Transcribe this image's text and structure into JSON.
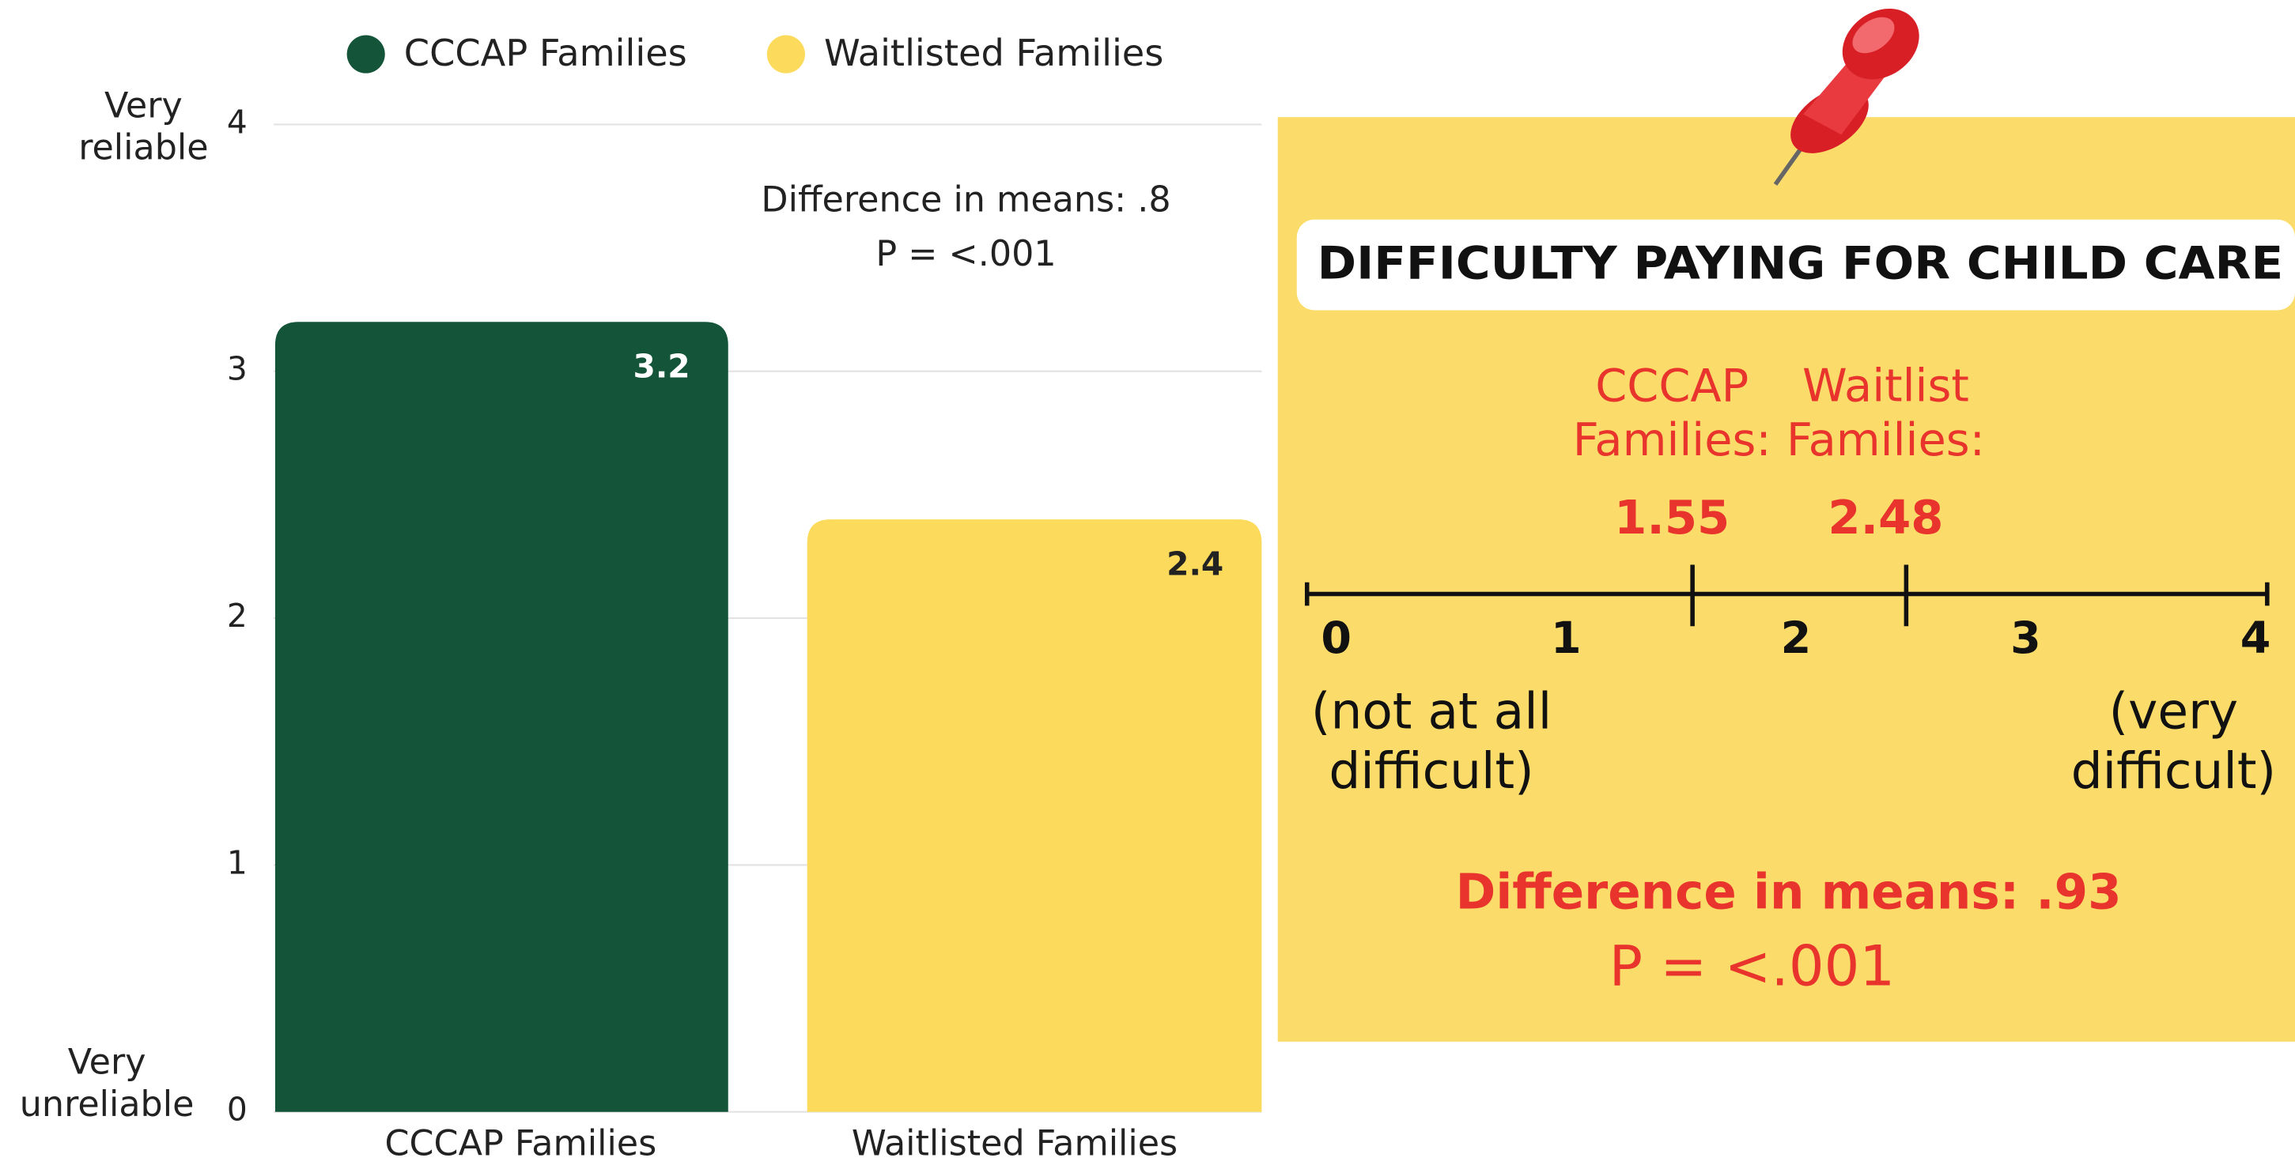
{
  "chart_data": [
    {
      "type": "bar",
      "categories": [
        "CCCAP Families",
        "Waitlisted Families"
      ],
      "series": [
        {
          "name": "CCCAP Families",
          "color": "#14553a",
          "values": [
            3.2,
            null
          ]
        },
        {
          "name": "Waitlisted Families",
          "color": "#fcdb5c",
          "values": [
            null,
            2.4
          ]
        }
      ],
      "ylim": [
        0,
        4
      ],
      "yticks": [
        0,
        1,
        2,
        3,
        4
      ],
      "grid": true,
      "ylabel_top": "Very\nreliable",
      "ylabel_bottom": "Very\nunreliable",
      "annotations": [
        "Difference in means: .8",
        "P = <.001"
      ]
    },
    {
      "type": "numberline",
      "title": "DIFFICULTY PAYING FOR CHILD CARE",
      "series": [
        {
          "name": "CCCAP\nFamilies:",
          "color": "#e8342c",
          "values": [
            1.55
          ]
        },
        {
          "name": "Waitlist\nFamilies:",
          "color": "#e8342c",
          "values": [
            2.48
          ]
        }
      ],
      "xlim": [
        0,
        4
      ],
      "xticks": [
        0,
        1,
        2,
        3,
        4
      ],
      "xlabel_left": "(not at all\ndifficult)",
      "xlabel_right": "(very\ndifficult)",
      "annotations": [
        "Difference in means: .93",
        "P = <.001"
      ]
    }
  ]
}
